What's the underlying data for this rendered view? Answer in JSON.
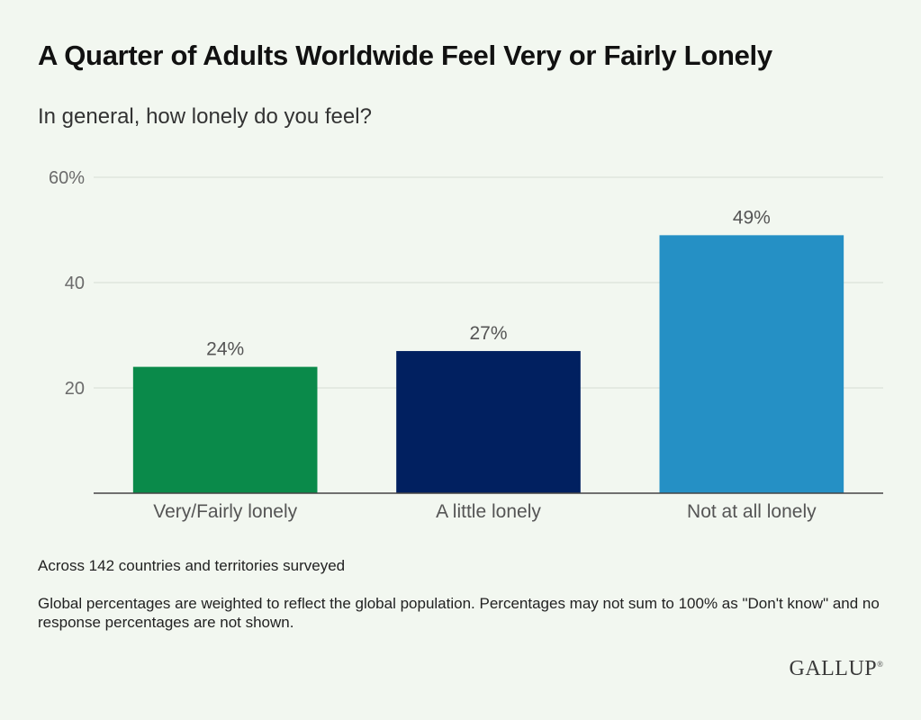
{
  "chart_data": {
    "type": "bar",
    "title": "A Quarter of Adults Worldwide Feel Very or Fairly Lonely",
    "subtitle": "In general, how lonely do you feel?",
    "categories": [
      "Very/Fairly lonely",
      "A little lonely",
      "Not at all lonely"
    ],
    "values": [
      24,
      27,
      49
    ],
    "value_labels": [
      "24%",
      "27%",
      "49%"
    ],
    "bar_colors": [
      "#0a8a4a",
      "#012060",
      "#2590c5"
    ],
    "yticks": [
      {
        "value": 20,
        "label": "20"
      },
      {
        "value": 40,
        "label": "40"
      },
      {
        "value": 60,
        "label": "60%"
      }
    ],
    "ylim": [
      0,
      60
    ],
    "xlabel": "",
    "ylabel": "",
    "grid": true,
    "legend": "none"
  },
  "notes": {
    "base": "Across 142 countries and territories surveyed",
    "weighting": "Global percentages are weighted to reflect the global population. Percentages may not sum to 100% as \"Don't know\" and no response percentages are not shown."
  },
  "brand": {
    "logo_text": "GALLUP",
    "logo_mark": "®"
  }
}
